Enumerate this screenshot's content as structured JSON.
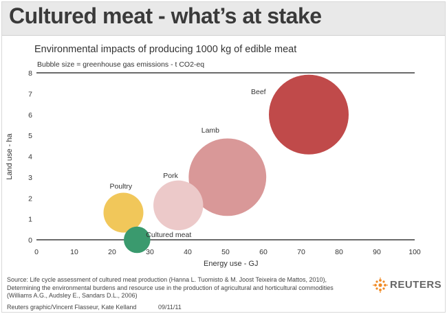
{
  "header": {
    "title": "Cultured meat - what’s at stake"
  },
  "chart_data": {
    "type": "scatter",
    "title": "Environmental impacts of producing 1000 kg of edible meat",
    "note": "Bubble size = greenhouse gas emissions - t CO2-eq",
    "xlabel": "Energy use - GJ",
    "ylabel": "Land use - ha",
    "xlim": [
      0,
      100
    ],
    "ylim": [
      0,
      8
    ],
    "xticks": [
      0,
      10,
      20,
      30,
      40,
      50,
      60,
      70,
      80,
      90,
      100
    ],
    "yticks": [
      0,
      1,
      2,
      3,
      4,
      5,
      6,
      7,
      8
    ],
    "grid": false,
    "series": [
      {
        "name": "Cultured meat",
        "x": 26.6,
        "y": 0.0,
        "size": 2.0,
        "color": "#3a9a6e"
      },
      {
        "name": "Poultry",
        "x": 23.0,
        "y": 1.3,
        "size": 4.5,
        "color": "#f1c75a"
      },
      {
        "name": "Pork",
        "x": 37.5,
        "y": 1.65,
        "size": 7.0,
        "color": "#ecc9c9"
      },
      {
        "name": "Lamb",
        "x": 50.5,
        "y": 3.0,
        "size": 17.0,
        "color": "#d99898"
      },
      {
        "name": "Beef",
        "x": 72.0,
        "y": 6.0,
        "size": 18.0,
        "color": "#c04a4a"
      }
    ]
  },
  "footer": {
    "source": "Source: Life cycle assessment of cultured meat production (Hanna L. Tuomisto & M. Joost Teixeira de Mattos, 2010), Determining the environmental burdens and resource use in the production of agricultural and horticultural commodities (Williams A.G., Audsley E., Sandars D.L., 2006)",
    "credit": "Reuters graphic/Vincent Flasseur, Kate Kelland",
    "date": "09/11/11",
    "logo_text": "REUTERS"
  },
  "colors": {
    "header_bg": "#e9e9e9",
    "logo_orange": "#f08a24"
  }
}
